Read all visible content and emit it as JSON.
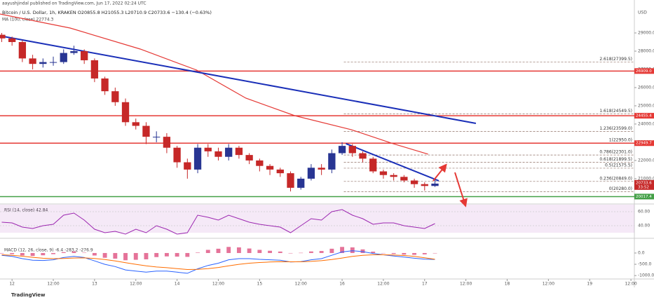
{
  "header": {
    "publisher": "aayushjindal published on TradingView.com, Jun 17, 2022 02:24 UTC",
    "symbol": "Bitcoin / U.S. Dollar, 1h, KRAKEN  O20855.8 H21055.3 L20710.9 C20733.6 −130.4 (−0.63%)",
    "currency": "USD"
  },
  "chart_data": {
    "type": "candlestick",
    "x": [
      -3,
      0,
      3,
      6,
      9,
      12,
      15,
      18,
      21,
      24,
      27,
      30,
      33,
      36,
      39,
      42,
      45,
      48,
      51,
      54,
      57,
      60,
      63,
      66,
      69,
      72,
      75,
      78,
      81,
      84,
      87,
      90,
      93,
      96,
      99,
      102,
      105,
      108,
      111,
      114,
      117,
      120,
      123
    ],
    "open": [
      28900,
      28700,
      28500,
      27600,
      27300,
      27400,
      27400,
      27900,
      28000,
      27500,
      26500,
      25800,
      25200,
      24100,
      23900,
      23300,
      23300,
      22700,
      21900,
      21500,
      22700,
      22500,
      22200,
      22700,
      22300,
      22000,
      21700,
      21500,
      21300,
      20500,
      21000,
      21600,
      21500,
      22400,
      22800,
      22400,
      22100,
      21400,
      21200,
      21100,
      20900,
      20700,
      20600
    ],
    "high": [
      29000,
      28800,
      28600,
      27800,
      27600,
      27700,
      28100,
      28300,
      28100,
      27600,
      26600,
      26000,
      25400,
      24300,
      24100,
      23600,
      23500,
      22800,
      22100,
      22900,
      22900,
      22700,
      22900,
      22800,
      22400,
      22100,
      21800,
      21600,
      21400,
      21100,
      21800,
      21800,
      22600,
      23000,
      22900,
      22500,
      22200,
      21500,
      21300,
      21200,
      21000,
      20800,
      21000
    ],
    "low": [
      28500,
      28300,
      27400,
      27000,
      27100,
      27200,
      27300,
      27800,
      27300,
      26300,
      25600,
      25000,
      23900,
      23700,
      22900,
      23000,
      22400,
      21600,
      21000,
      21300,
      22200,
      22000,
      22000,
      22100,
      21800,
      21400,
      21200,
      21100,
      20300,
      20400,
      20900,
      21200,
      21300,
      22300,
      22200,
      21900,
      21300,
      21000,
      20900,
      20800,
      20500,
      20350,
      20550
    ],
    "close": [
      28700,
      28500,
      27600,
      27300,
      27400,
      27400,
      27900,
      28000,
      27500,
      26500,
      25800,
      25200,
      24100,
      23900,
      23300,
      23300,
      22700,
      21900,
      21500,
      22700,
      22500,
      22200,
      22700,
      22300,
      22000,
      21700,
      21500,
      21300,
      20500,
      21000,
      21600,
      21500,
      22400,
      22800,
      22400,
      22100,
      21400,
      21200,
      21100,
      20900,
      20700,
      20600,
      20730
    ],
    "up_color": "#283593",
    "down_color": "#c62828",
    "xlim": [
      -3.5,
      181
    ],
    "xticks": [
      {
        "value": 0,
        "label": "12"
      },
      {
        "value": 12,
        "label": "12:00"
      },
      {
        "value": 24,
        "label": "13"
      },
      {
        "value": 36,
        "label": "12:00"
      },
      {
        "value": 48,
        "label": "14"
      },
      {
        "value": 60,
        "label": "12:00"
      },
      {
        "value": 72,
        "label": "15"
      },
      {
        "value": 84,
        "label": "12:00"
      },
      {
        "value": 96,
        "label": "16"
      },
      {
        "value": 108,
        "label": "12:00"
      },
      {
        "value": 120,
        "label": "17"
      },
      {
        "value": 132,
        "label": "12:00"
      },
      {
        "value": 144,
        "label": "18"
      },
      {
        "value": 156,
        "label": "12:00"
      },
      {
        "value": 168,
        "label": "19"
      },
      {
        "value": 180,
        "label": "12:00"
      }
    ],
    "ylim": [
      19650,
      30500
    ],
    "yticks": [
      {
        "value": 20000,
        "label": "20000.0"
      },
      {
        "value": 21000,
        "label": "21000.0"
      },
      {
        "value": 22000,
        "label": "22000.0"
      },
      {
        "value": 23000,
        "label": "23000.0"
      },
      {
        "value": 24000,
        "label": "24000.0"
      },
      {
        "value": 25000,
        "label": "25000.0"
      },
      {
        "value": 26000,
        "label": "26000.0"
      },
      {
        "value": 27000,
        "label": "27000.0"
      },
      {
        "value": 28000,
        "label": "28000.0"
      },
      {
        "value": 29000,
        "label": "29000.0"
      }
    ],
    "ma": {
      "name": "MA (100, close)  22774.3",
      "color": "#e53935",
      "x": [
        -3.5,
        16.9,
        37.3,
        53.7,
        68,
        82.2,
        98.6,
        110.8,
        121
      ],
      "values": [
        30038,
        29269,
        28115,
        26960,
        25423,
        24461,
        23692,
        22923,
        22346
      ]
    },
    "trendlines": [
      {
        "color": "#1a2fb8",
        "x": [
          -2.5,
          134.9
        ],
        "values": [
          28808,
          24038
        ]
      },
      {
        "color": "#1a2fb8",
        "x": [
          97.1,
          124.1
        ],
        "values": [
          22923,
          20885
        ]
      }
    ],
    "hlines": [
      {
        "value": 26909,
        "label": "26909.0",
        "color": "#e53935"
      },
      {
        "value": 24455.4,
        "color": "#e53935"
      },
      {
        "value": 22949.7,
        "color": "#e53935"
      },
      {
        "value": 20017.4,
        "color": "#43a047"
      }
    ],
    "fib": {
      "start": 96.5,
      "color": "#8d6e63",
      "levels": [
        {
          "value": 27399.5,
          "label": "2.618(27399.5)"
        },
        {
          "value": 24549.5,
          "label": "1.618(24549.5)"
        },
        {
          "value": 23599,
          "label": "1.236(23599.0)"
        },
        {
          "value": 22950,
          "label": "1(22950.0)"
        },
        {
          "value": 22301,
          "label": "0.786(22301.0)"
        },
        {
          "value": 21899.5,
          "label": "0.618(21899.5)"
        },
        {
          "value": 21575.5,
          "label": "0.5(21575.5)"
        },
        {
          "value": 20849,
          "label": "0.236(20849.0)"
        },
        {
          "value": 20280,
          "label": "0(20280.0)"
        }
      ]
    },
    "last_price": 20733.6,
    "countdown": "33:52",
    "rsi": {
      "name": "RSI (14, close)  42.84",
      "color": "#9c27b0",
      "values": [
        45,
        44,
        38,
        36,
        40,
        42,
        55,
        58,
        48,
        35,
        30,
        32,
        28,
        35,
        30,
        40,
        35,
        28,
        30,
        55,
        52,
        48,
        55,
        50,
        45,
        42,
        40,
        38,
        30,
        40,
        50,
        48,
        60,
        63,
        55,
        50,
        42,
        44,
        44,
        40,
        38,
        36,
        43
      ],
      "ylim": [
        24,
        70
      ],
      "band": [
        30,
        70
      ],
      "yticks": [
        {
          "value": 60,
          "label": "60.00"
        },
        {
          "value": 40,
          "label": "40.00"
        }
      ]
    },
    "macd": {
      "name": "MACD (12, 26, close, 9)  -6.4  -283.2  -276.9",
      "macd_color": "#2962ff",
      "signal_color": "#ff6d00",
      "hist_color": "#e57399",
      "macd": [
        -100,
        -150,
        -250,
        -320,
        -330,
        -300,
        -200,
        -150,
        -200,
        -350,
        -500,
        -600,
        -750,
        -800,
        -850,
        -800,
        -800,
        -850,
        -900,
        -700,
        -550,
        -450,
        -300,
        -250,
        -250,
        -280,
        -300,
        -320,
        -400,
        -380,
        -300,
        -250,
        -100,
        50,
        100,
        60,
        -20,
        -80,
        -130,
        -180,
        -230,
        -270,
        -283
      ],
      "signal": [
        -80,
        -100,
        -140,
        -190,
        -230,
        -250,
        -240,
        -220,
        -215,
        -240,
        -290,
        -350,
        -430,
        -500,
        -570,
        -620,
        -650,
        -690,
        -730,
        -720,
        -690,
        -640,
        -570,
        -500,
        -450,
        -420,
        -400,
        -385,
        -390,
        -390,
        -370,
        -340,
        -290,
        -220,
        -150,
        -100,
        -80,
        -80,
        -90,
        -110,
        -150,
        -210,
        -277
      ],
      "histogram": [
        -20,
        -50,
        -110,
        -130,
        -100,
        -50,
        40,
        70,
        15,
        -110,
        -210,
        -250,
        -320,
        -300,
        -280,
        -180,
        -150,
        -160,
        -170,
        20,
        140,
        190,
        270,
        250,
        200,
        140,
        100,
        65,
        -10,
        10,
        70,
        90,
        190,
        270,
        250,
        160,
        60,
        0,
        -40,
        -70,
        -80,
        -60,
        -6
      ],
      "ylim": [
        -1150,
        620
      ],
      "yticks": [
        {
          "value": 0,
          "label": "0.0"
        },
        {
          "value": -500,
          "label": "-500.0"
        },
        {
          "value": -1000,
          "label": "-1000.0"
        }
      ]
    }
  },
  "footer": "TradingView"
}
